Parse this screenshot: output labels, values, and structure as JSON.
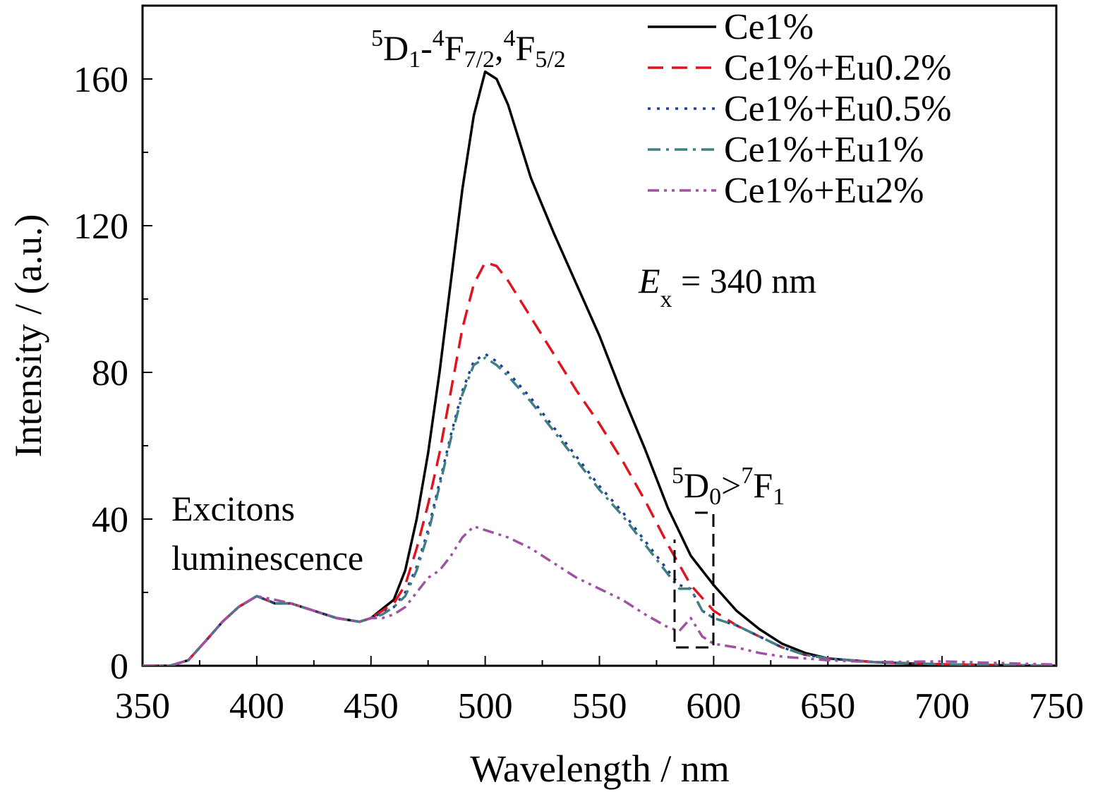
{
  "chart_data": {
    "type": "line",
    "xlabel": "Wavelength / nm",
    "ylabel": "Intensity / (a.u.)",
    "xlim": [
      350,
      750
    ],
    "ylim": [
      0,
      180
    ],
    "xticks": [
      350,
      400,
      450,
      500,
      550,
      600,
      650,
      700,
      750
    ],
    "yticks": [
      0,
      40,
      80,
      120,
      160
    ],
    "x_tick_labels": [
      "350",
      "400",
      "450",
      "500",
      "550",
      "600",
      "650",
      "700",
      "750"
    ],
    "y_tick_labels": [
      "0",
      "40",
      "80",
      "120",
      "160"
    ],
    "grid": false,
    "legend_position": "top-right",
    "series": [
      {
        "name": "Ce1%",
        "color": "#000000",
        "dash": "solid",
        "points": [
          [
            350,
            0
          ],
          [
            362,
            0
          ],
          [
            370,
            1.5
          ],
          [
            378,
            7
          ],
          [
            385,
            12
          ],
          [
            392,
            16
          ],
          [
            400,
            19
          ],
          [
            408,
            17
          ],
          [
            415,
            17
          ],
          [
            425,
            15
          ],
          [
            435,
            13
          ],
          [
            445,
            12
          ],
          [
            450,
            13
          ],
          [
            455,
            15.5
          ],
          [
            460,
            18
          ],
          [
            465,
            26
          ],
          [
            470,
            40
          ],
          [
            475,
            58
          ],
          [
            480,
            80
          ],
          [
            485,
            105
          ],
          [
            490,
            130
          ],
          [
            495,
            150
          ],
          [
            500,
            162
          ],
          [
            505,
            160
          ],
          [
            510,
            153
          ],
          [
            515,
            143
          ],
          [
            520,
            133
          ],
          [
            530,
            118
          ],
          [
            540,
            104
          ],
          [
            550,
            90
          ],
          [
            560,
            74
          ],
          [
            570,
            59
          ],
          [
            580,
            43
          ],
          [
            590,
            30
          ],
          [
            600,
            22
          ],
          [
            610,
            15
          ],
          [
            620,
            10
          ],
          [
            630,
            6
          ],
          [
            640,
            3.5
          ],
          [
            650,
            2
          ],
          [
            670,
            1
          ],
          [
            700,
            0.3
          ],
          [
            750,
            0
          ]
        ]
      },
      {
        "name": "Ce1%+Eu0.2%",
        "color": "#e0141e",
        "dash": "long-dash",
        "points": [
          [
            350,
            0
          ],
          [
            362,
            0
          ],
          [
            370,
            1.5
          ],
          [
            378,
            7
          ],
          [
            385,
            12
          ],
          [
            392,
            16
          ],
          [
            400,
            19
          ],
          [
            408,
            17
          ],
          [
            415,
            17
          ],
          [
            425,
            15
          ],
          [
            435,
            13
          ],
          [
            445,
            12
          ],
          [
            450,
            13
          ],
          [
            455,
            15
          ],
          [
            460,
            17
          ],
          [
            465,
            22
          ],
          [
            470,
            32
          ],
          [
            475,
            44
          ],
          [
            480,
            58
          ],
          [
            485,
            75
          ],
          [
            490,
            92
          ],
          [
            495,
            104
          ],
          [
            500,
            110
          ],
          [
            505,
            109
          ],
          [
            510,
            105
          ],
          [
            520,
            95
          ],
          [
            530,
            85
          ],
          [
            540,
            75
          ],
          [
            550,
            66
          ],
          [
            560,
            56
          ],
          [
            570,
            45
          ],
          [
            580,
            33
          ],
          [
            590,
            22
          ],
          [
            600,
            15
          ],
          [
            610,
            11
          ],
          [
            620,
            8
          ],
          [
            630,
            5
          ],
          [
            640,
            3
          ],
          [
            650,
            2
          ],
          [
            670,
            1
          ],
          [
            700,
            0.4
          ],
          [
            750,
            0
          ]
        ]
      },
      {
        "name": "Ce1%+Eu0.5%",
        "color": "#1c3f9c",
        "dash": "dot",
        "points": [
          [
            350,
            0
          ],
          [
            362,
            0
          ],
          [
            370,
            1.5
          ],
          [
            378,
            7
          ],
          [
            385,
            12
          ],
          [
            392,
            16
          ],
          [
            400,
            19
          ],
          [
            408,
            17
          ],
          [
            415,
            17
          ],
          [
            425,
            15
          ],
          [
            435,
            13
          ],
          [
            445,
            12
          ],
          [
            450,
            13
          ],
          [
            455,
            14.5
          ],
          [
            460,
            16
          ],
          [
            465,
            20
          ],
          [
            470,
            27
          ],
          [
            475,
            37
          ],
          [
            480,
            50
          ],
          [
            485,
            63
          ],
          [
            490,
            75
          ],
          [
            495,
            83
          ],
          [
            500,
            85
          ],
          [
            505,
            83
          ],
          [
            510,
            80
          ],
          [
            520,
            73
          ],
          [
            530,
            65
          ],
          [
            540,
            57
          ],
          [
            550,
            49
          ],
          [
            560,
            42
          ],
          [
            570,
            34
          ],
          [
            580,
            26
          ],
          [
            585,
            22
          ],
          [
            590,
            21
          ],
          [
            595,
            15
          ],
          [
            600,
            13
          ],
          [
            610,
            11
          ],
          [
            620,
            8
          ],
          [
            630,
            5
          ],
          [
            640,
            3
          ],
          [
            650,
            2
          ],
          [
            670,
            1
          ],
          [
            700,
            0.4
          ],
          [
            750,
            0
          ]
        ]
      },
      {
        "name": "Ce1%+Eu1%",
        "color": "#3e7f83",
        "dash": "dash-dot",
        "points": [
          [
            350,
            0
          ],
          [
            362,
            0
          ],
          [
            370,
            1.5
          ],
          [
            378,
            7
          ],
          [
            385,
            12
          ],
          [
            392,
            16
          ],
          [
            400,
            19
          ],
          [
            408,
            17
          ],
          [
            415,
            17
          ],
          [
            425,
            15
          ],
          [
            435,
            13
          ],
          [
            445,
            12
          ],
          [
            450,
            13
          ],
          [
            455,
            14
          ],
          [
            460,
            16
          ],
          [
            465,
            19
          ],
          [
            470,
            26
          ],
          [
            475,
            36
          ],
          [
            480,
            49
          ],
          [
            485,
            62
          ],
          [
            490,
            74
          ],
          [
            495,
            82
          ],
          [
            500,
            84
          ],
          [
            505,
            82
          ],
          [
            510,
            79
          ],
          [
            520,
            72
          ],
          [
            530,
            64
          ],
          [
            540,
            56
          ],
          [
            550,
            48
          ],
          [
            560,
            41
          ],
          [
            570,
            33
          ],
          [
            580,
            25
          ],
          [
            585,
            21
          ],
          [
            590,
            21
          ],
          [
            595,
            15
          ],
          [
            600,
            13
          ],
          [
            610,
            11
          ],
          [
            620,
            8
          ],
          [
            630,
            5
          ],
          [
            640,
            3
          ],
          [
            650,
            2
          ],
          [
            670,
            1
          ],
          [
            700,
            0.4
          ],
          [
            750,
            0
          ]
        ]
      },
      {
        "name": "Ce1%+Eu2%",
        "color": "#a052a2",
        "dash": "dash-dot-dot",
        "points": [
          [
            350,
            0
          ],
          [
            362,
            0
          ],
          [
            370,
            1.5
          ],
          [
            378,
            7
          ],
          [
            385,
            12
          ],
          [
            392,
            16
          ],
          [
            400,
            19
          ],
          [
            408,
            18
          ],
          [
            415,
            17
          ],
          [
            425,
            15
          ],
          [
            435,
            13
          ],
          [
            445,
            12
          ],
          [
            450,
            13
          ],
          [
            455,
            13
          ],
          [
            460,
            14
          ],
          [
            465,
            16
          ],
          [
            470,
            20
          ],
          [
            475,
            24
          ],
          [
            480,
            26
          ],
          [
            485,
            30
          ],
          [
            490,
            35
          ],
          [
            495,
            38
          ],
          [
            500,
            37
          ],
          [
            510,
            35
          ],
          [
            520,
            32
          ],
          [
            530,
            28
          ],
          [
            540,
            24
          ],
          [
            550,
            21
          ],
          [
            560,
            18
          ],
          [
            570,
            14
          ],
          [
            580,
            10.5
          ],
          [
            585,
            9.5
          ],
          [
            590,
            13
          ],
          [
            595,
            8
          ],
          [
            600,
            6
          ],
          [
            610,
            5
          ],
          [
            620,
            3.5
          ],
          [
            630,
            2.5
          ],
          [
            640,
            2
          ],
          [
            650,
            1.5
          ],
          [
            670,
            1
          ],
          [
            700,
            1.2
          ],
          [
            750,
            0.3
          ]
        ]
      }
    ],
    "annotations": {
      "transition_main": {
        "t1": "5",
        "t2": "D",
        "t3": "1",
        "t4": "-",
        "t5": "4",
        "t6": "F",
        "t7": "7/2",
        "t8": ",",
        "t9": "4",
        "t10": "F",
        "t11": "5/2"
      },
      "transition_eu": {
        "t1": "5",
        "t2": "D",
        "t3": "0",
        "t4": ">",
        "t5": "7",
        "t6": "F",
        "t7": "1"
      },
      "excitation": {
        "symbol": "E",
        "sub": "x",
        "value": " = 340 nm"
      },
      "excitons_line1": "Excitons",
      "excitons_line2": "luminescence"
    }
  }
}
